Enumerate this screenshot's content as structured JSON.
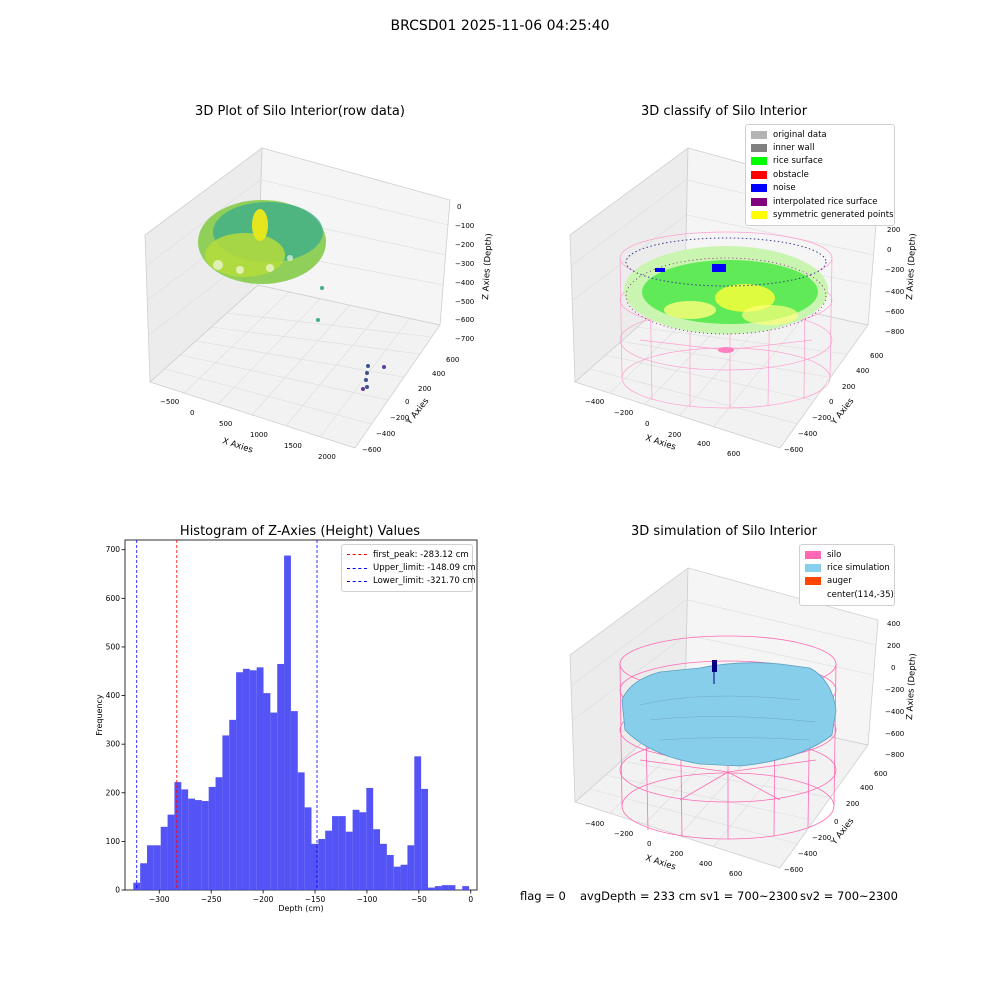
{
  "figure": {
    "suptitle": "BRCSD01 2025-11-06 04:25:40",
    "footer": {
      "flag": "flag = 0",
      "avg_depth": "avgDepth = 233 cm",
      "sv1": "sv1 = 700~2300",
      "sv2": "sv2 = 700~2300"
    }
  },
  "panels": {
    "raw": {
      "title": "3D Plot of Silo Interior(row data)",
      "xlabel": "X Axies",
      "ylabel": "Y Axies",
      "zlabel": "Z Axies (Depth)",
      "xticks": [
        "−500",
        "0",
        "500",
        "1000",
        "1500",
        "2000"
      ],
      "yticks": [
        "−600",
        "−400",
        "−200",
        "0",
        "200",
        "400",
        "600"
      ],
      "zticks": [
        "0",
        "−100",
        "−200",
        "−300",
        "−400",
        "−500",
        "−600",
        "−700"
      ]
    },
    "classify": {
      "title": "3D classify of Silo Interior",
      "xlabel": "X Axies",
      "ylabel": "Y Axies",
      "zlabel": "Z Axies (Depth)",
      "xticks": [
        "−400",
        "−200",
        "0",
        "200",
        "400",
        "600"
      ],
      "yticks": [
        "−600",
        "−400",
        "−200",
        "0",
        "200",
        "400",
        "600"
      ],
      "zticks": [
        "200",
        "0",
        "−200",
        "−400",
        "−600",
        "−800"
      ],
      "legend": [
        {
          "label": "original data",
          "color": "#b3b3b3"
        },
        {
          "label": "inner wall",
          "color": "#808080"
        },
        {
          "label": "rice surface",
          "color": "#00ff00"
        },
        {
          "label": "obstacle",
          "color": "#ff0000"
        },
        {
          "label": "noise",
          "color": "#0000ff"
        },
        {
          "label": "interpolated rice surface",
          "color": "#800080"
        },
        {
          "label": "symmetric generated points",
          "color": "#ffff00"
        }
      ]
    },
    "simulation": {
      "title": "3D simulation of Silo Interior",
      "xlabel": "X Axies",
      "ylabel": "Y Axies",
      "zlabel": "Z Axies (Depth)",
      "xticks": [
        "−400",
        "−200",
        "0",
        "200",
        "400",
        "600"
      ],
      "yticks": [
        "−600",
        "−400",
        "−200",
        "0",
        "200",
        "400",
        "600"
      ],
      "zticks": [
        "400",
        "200",
        "0",
        "−200",
        "−400",
        "−600",
        "−800"
      ],
      "legend": [
        {
          "label": "silo",
          "color": "#ff69b4"
        },
        {
          "label": "rice simulation",
          "color": "#87ceeb"
        },
        {
          "label": "auger",
          "color": "#ff4500"
        },
        {
          "label": "center(114,-35)",
          "color": ""
        }
      ]
    }
  },
  "chart_data": {
    "type": "bar",
    "title": "Histogram of Z-Axies (Height) Values",
    "xlabel": "Depth (cm)",
    "ylabel": "Frequency",
    "bar_color": "#4b4bf5",
    "xlim": [
      -333,
      6
    ],
    "ylim": [
      0,
      720
    ],
    "xticks": [
      -300,
      -250,
      -200,
      -150,
      -100,
      -50,
      0
    ],
    "xtick_labels": [
      "−300",
      "−250",
      "−200",
      "−150",
      "−100",
      "−50",
      "0"
    ],
    "yticks": [
      0,
      100,
      200,
      300,
      400,
      500,
      600,
      700
    ],
    "bin_start": -325,
    "bin_width": 6.6,
    "values": [
      15,
      55,
      92,
      92,
      130,
      155,
      222,
      207,
      188,
      185,
      183,
      212,
      232,
      318,
      350,
      448,
      455,
      452,
      458,
      405,
      365,
      465,
      688,
      368,
      242,
      170,
      95,
      105,
      122,
      152,
      152,
      120,
      165,
      160,
      210,
      125,
      95,
      72,
      48,
      52,
      92,
      275,
      208,
      5,
      8,
      10,
      10,
      0,
      8
    ],
    "vlines": [
      {
        "label": "first_peak: -283.12 cm",
        "x": -283.12,
        "color": "#ff0000"
      },
      {
        "label": "Upper_limit: -148.09 cm",
        "x": -148.09,
        "color": "#0000ff"
      },
      {
        "label": "Lower_limit: -321.70 cm",
        "x": -321.7,
        "color": "#0000ff"
      }
    ],
    "legend_position": "upper right"
  }
}
